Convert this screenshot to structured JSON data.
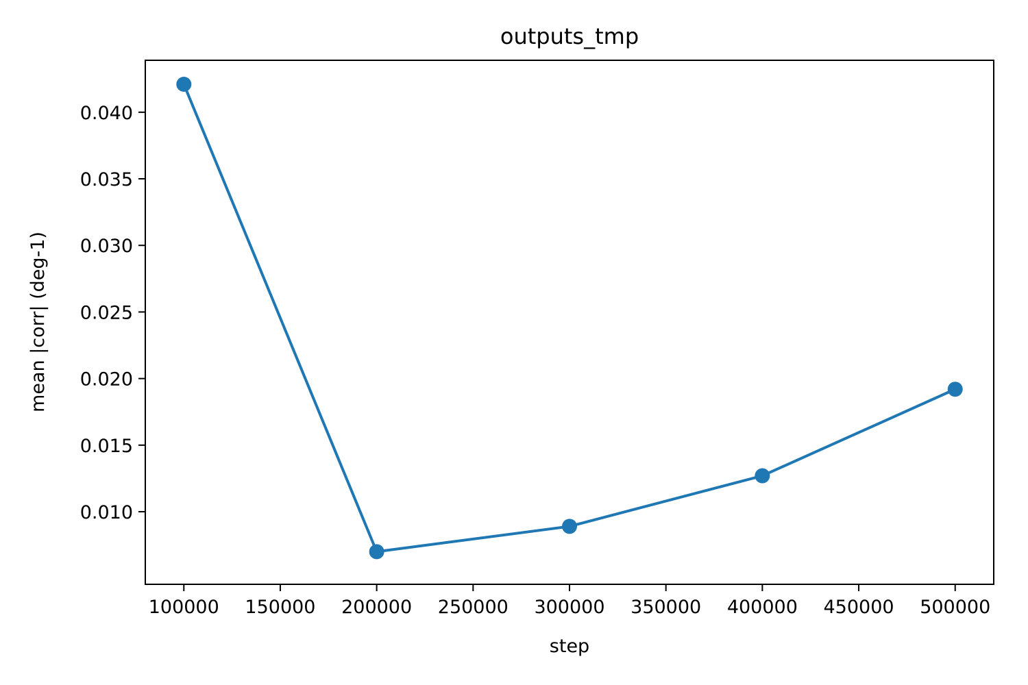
{
  "chart_data": {
    "type": "line",
    "title": "outputs_tmp",
    "xlabel": "step",
    "ylabel": "mean |corr| (deg-1)",
    "x": [
      100000,
      200000,
      300000,
      400000,
      500000
    ],
    "series": [
      {
        "values": [
          0.0421,
          0.007,
          0.0089,
          0.0127,
          0.0192
        ],
        "color": "#1f77b4"
      }
    ],
    "xlim": [
      80000,
      520000
    ],
    "ylim": [
      0.00455,
      0.0439
    ],
    "xticks": [
      100000,
      150000,
      200000,
      250000,
      300000,
      350000,
      400000,
      450000,
      500000
    ],
    "xtick_labels": [
      "100000",
      "150000",
      "200000",
      "250000",
      "300000",
      "350000",
      "400000",
      "450000",
      "500000"
    ],
    "yticks": [
      0.01,
      0.015,
      0.02,
      0.025,
      0.03,
      0.035,
      0.04
    ],
    "ytick_labels": [
      "0.010",
      "0.015",
      "0.020",
      "0.025",
      "0.030",
      "0.035",
      "0.040"
    ],
    "grid": false,
    "markers": "circle"
  }
}
